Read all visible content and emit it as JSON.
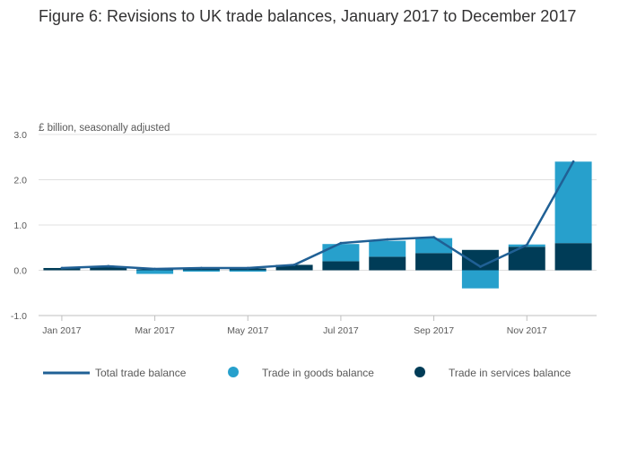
{
  "chart_data": {
    "type": "bar",
    "title": "Figure 6: Revisions to UK trade balances, January 2017 to December 2017",
    "units_label": "£ billion, seasonally adjusted",
    "xlabel": "",
    "ylabel": "£ billion, seasonally adjusted",
    "ylim": [
      -1.0,
      3.0
    ],
    "y_ticks": [
      3.0,
      2.0,
      1.0,
      0.0,
      -1.0
    ],
    "y_tick_labels": [
      "3.0",
      "2.0",
      "1.0",
      "0.0",
      "-1.0"
    ],
    "grid": true,
    "stacked": true,
    "categories": [
      "Jan 2017",
      "Feb 2017",
      "Mar 2017",
      "Apr 2017",
      "May 2017",
      "Jun 2017",
      "Jul 2017",
      "Aug 2017",
      "Sep 2017",
      "Oct 2017",
      "Nov 2017",
      "Dec 2017"
    ],
    "x_tick_labels": [
      "Jan 2017",
      "Mar 2017",
      "May 2017",
      "Jul 2017",
      "Sep 2017",
      "Nov 2017"
    ],
    "series": [
      {
        "name": "Trade in services balance",
        "kind": "bar",
        "color": "#003c57",
        "values": [
          0.05,
          0.07,
          0.02,
          0.04,
          0.04,
          0.12,
          0.2,
          0.3,
          0.38,
          0.45,
          0.52,
          0.6
        ]
      },
      {
        "name": "Trade in goods balance",
        "kind": "bar",
        "color": "#27a0cc",
        "values": [
          0.0,
          0.0,
          -0.08,
          -0.03,
          -0.03,
          0.0,
          0.38,
          0.35,
          0.33,
          -0.4,
          0.05,
          1.8
        ]
      },
      {
        "name": "Total trade balance",
        "kind": "line",
        "color": "#206095",
        "values": [
          0.05,
          0.09,
          0.03,
          0.05,
          0.05,
          0.12,
          0.6,
          0.68,
          0.73,
          0.08,
          0.56,
          2.4
        ]
      }
    ],
    "legend": {
      "placement": "bottom",
      "items": [
        "Total trade balance",
        "Trade in goods balance",
        "Trade in services balance"
      ]
    }
  },
  "colors": {
    "services": "#003c57",
    "goods": "#27a0cc",
    "total": "#206095",
    "grid": "#e0e0e0",
    "axis": "#bfbfbf"
  }
}
